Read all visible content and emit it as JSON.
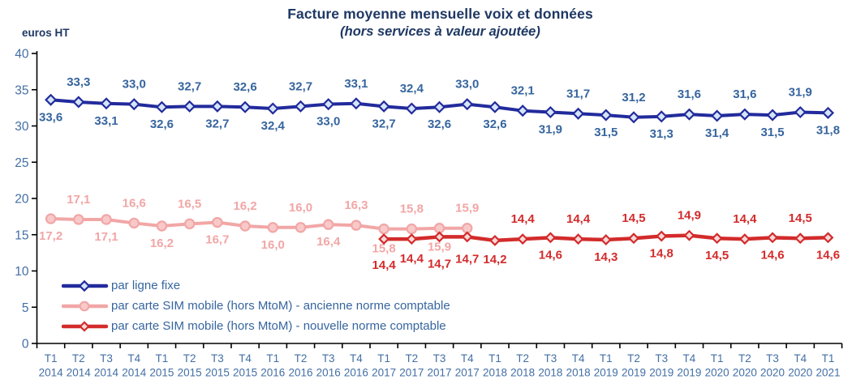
{
  "chart_data": {
    "type": "line",
    "title": "Facture moyenne mensuelle voix et données",
    "subtitle": "(hors services à valeur ajoutée)",
    "ylabel": "euros HT",
    "xlabel": "",
    "ylim": [
      0,
      40
    ],
    "yticks": [
      0,
      5,
      10,
      15,
      20,
      25,
      30,
      35,
      40
    ],
    "grid": false,
    "legend_position": "bottom-left",
    "decimal_separator": ",",
    "colors": {
      "title": "#1F3864",
      "tick_labels": "#436FA5",
      "axis_line": "#000000",
      "legend_text": "#36659E"
    },
    "categories": [
      "T1 2014",
      "T2 2014",
      "T3 2014",
      "T4 2014",
      "T1 2015",
      "T2 2015",
      "T3 2015",
      "T4 2015",
      "T1 2016",
      "T2 2016",
      "T3 2016",
      "T4 2016",
      "T1 2017",
      "T2 2017",
      "T3 2017",
      "T4 2017",
      "T1 2018",
      "T2 2018",
      "T3 2018",
      "T4 2018",
      "T1 2019",
      "T2 2019",
      "T3 2019",
      "T4 2019",
      "T1 2020",
      "T2 2020",
      "T3 2020",
      "T4 2020",
      "T1 2021"
    ],
    "series": [
      {
        "name": "par ligne fixe",
        "color": "#222B9C",
        "label_color": "#36659E",
        "marker": "diamond",
        "marker_fill": "#D5E5F8",
        "marker_size": 6,
        "line_width": 4,
        "start_index": 0,
        "values": [
          33.6,
          33.3,
          33.1,
          33.0,
          32.6,
          32.7,
          32.7,
          32.6,
          32.4,
          32.7,
          33.0,
          33.1,
          32.7,
          32.4,
          32.6,
          33.0,
          32.6,
          32.1,
          31.9,
          31.7,
          31.5,
          31.2,
          31.3,
          31.6,
          31.4,
          31.6,
          31.5,
          31.9,
          31.8
        ],
        "label_side": [
          "below",
          "above",
          "below",
          "above",
          "below",
          "above",
          "below",
          "above",
          "below",
          "above",
          "below",
          "above",
          "below",
          "above",
          "below",
          "above",
          "below",
          "above",
          "below",
          "above",
          "below",
          "above",
          "below",
          "above",
          "below",
          "above",
          "below",
          "above",
          "below"
        ]
      },
      {
        "name": "par carte SIM mobile (hors MtoM)  - ancienne norme comptable",
        "color": "#F2A6A6",
        "label_color": "#F2A6A6",
        "marker": "circle",
        "marker_fill": "#F8C9C9",
        "marker_size": 5.6,
        "line_width": 4,
        "start_index": 0,
        "values": [
          17.2,
          17.1,
          17.1,
          16.6,
          16.2,
          16.5,
          16.7,
          16.2,
          16.0,
          16.0,
          16.4,
          16.3,
          15.8,
          15.8,
          15.9,
          15.9
        ],
        "label_side": [
          "below",
          "above",
          "below",
          "above",
          "below",
          "above",
          "below",
          "above",
          "below",
          "above",
          "below",
          "above",
          "below",
          "above",
          "below",
          "above"
        ]
      },
      {
        "name": "par carte SIM mobile (hors MtoM)  - nouvelle norme comptable",
        "color": "#D32B2B",
        "label_color": "#D32B2B",
        "marker": "diamond",
        "marker_fill": "#F7D9D9",
        "marker_size": 5.4,
        "line_width": 4.5,
        "start_index": 12,
        "values": [
          14.4,
          14.4,
          14.7,
          14.7,
          14.2,
          14.4,
          14.6,
          14.4,
          14.3,
          14.5,
          14.8,
          14.9,
          14.5,
          14.4,
          14.6,
          14.5,
          14.6
        ],
        "label_side": [
          "below",
          "below",
          "below",
          "below",
          "below",
          "above",
          "below",
          "above",
          "below",
          "above",
          "below",
          "above",
          "below",
          "above",
          "below",
          "above",
          "below"
        ]
      }
    ]
  }
}
